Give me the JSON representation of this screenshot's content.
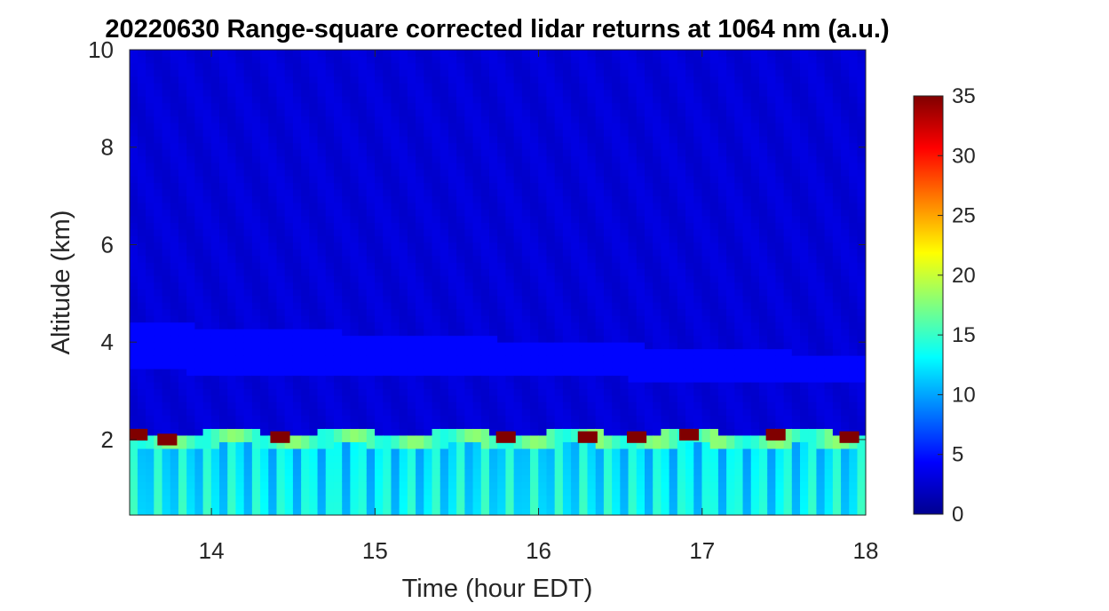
{
  "chart_data": {
    "type": "heatmap",
    "title": "20220630  Range-square corrected lidar returns at 1064 nm (a.u.)",
    "xlabel": "Time (hour EDT)",
    "ylabel": "Altitude (km)",
    "xlim": [
      13.5,
      18.0
    ],
    "ylim": [
      0.45,
      10
    ],
    "xticks": [
      14,
      15,
      16,
      17,
      18
    ],
    "yticks": [
      2,
      4,
      6,
      8,
      10
    ],
    "colormap": "jet",
    "colorbar": {
      "range": [
        0,
        35
      ],
      "ticks": [
        0,
        5,
        10,
        15,
        20,
        25,
        30,
        35
      ]
    },
    "features": {
      "boundary_layer_top_km": 2.0,
      "boundary_layer_value": 12,
      "free_troposphere_value": 3,
      "aerosol_layer": {
        "altitude_km": [
          3.4,
          4.4
        ],
        "value": 4.5
      },
      "cloud_events": [
        {
          "time": 13.55,
          "altitude_km": 2.1,
          "value": 35
        },
        {
          "time": 13.73,
          "altitude_km": 2.0,
          "value": 35
        },
        {
          "time": 14.42,
          "altitude_km": 2.05,
          "value": 35
        },
        {
          "time": 15.8,
          "altitude_km": 2.05,
          "value": 35
        },
        {
          "time": 16.3,
          "altitude_km": 2.05,
          "value": 35
        },
        {
          "time": 16.6,
          "altitude_km": 2.05,
          "value": 35
        },
        {
          "time": 16.92,
          "altitude_km": 2.1,
          "value": 35
        },
        {
          "time": 17.45,
          "altitude_km": 2.1,
          "value": 35
        },
        {
          "time": 17.9,
          "altitude_km": 2.05,
          "value": 35
        }
      ]
    }
  },
  "colors": {
    "background": "#ffffff",
    "axis": "#262626",
    "jet_low": "#00008f",
    "jet_high": "#800000"
  }
}
